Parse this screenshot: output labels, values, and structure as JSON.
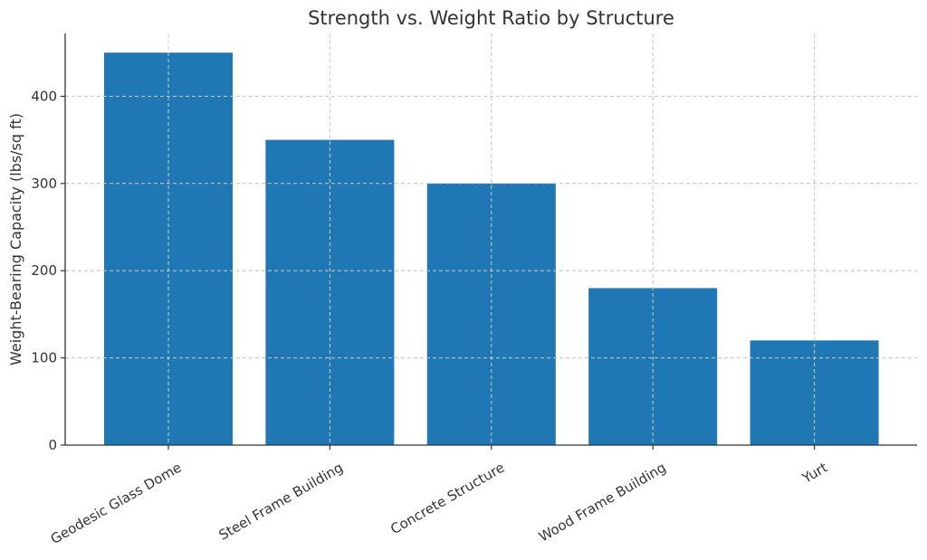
{
  "chart_data": {
    "type": "bar",
    "title": "Strength vs. Weight Ratio by Structure",
    "xlabel": "",
    "ylabel": "Weight-Bearing Capacity (lbs/sq ft)",
    "categories": [
      "Geodesic Glass Dome",
      "Steel Frame Building",
      "Concrete Structure",
      "Wood Frame Building",
      "Yurt"
    ],
    "values": [
      450,
      350,
      300,
      180,
      120
    ],
    "yticks": [
      "0",
      "100",
      "200",
      "300",
      "400"
    ],
    "ylim": [
      0,
      472
    ],
    "grid": true,
    "bar_color": "#1f77b4"
  }
}
